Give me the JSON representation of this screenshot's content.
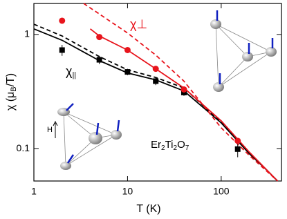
{
  "chart_data": {
    "type": "line",
    "x_label": "T (K)",
    "y_label_parts": [
      "χ (μ",
      "B",
      "/T)"
    ],
    "log_x": true,
    "log_y": true,
    "xlim": [
      1,
      440
    ],
    "ylim": [
      0.052,
      1.87
    ],
    "xticks": [
      1,
      10,
      100
    ],
    "yticks": [
      0.1,
      1
    ],
    "annotations": {
      "chi_perp": "χ⊥",
      "chi_par_parts": [
        "χ",
        "||"
      ],
      "compound_parts": [
        "Er",
        "2",
        "Ti",
        "2",
        "O",
        "7"
      ],
      "field": "H"
    },
    "series": [
      {
        "color": "#000000",
        "style": "dashed",
        "x": [
          1,
          2,
          5,
          10,
          20,
          40,
          100,
          200,
          400
        ],
        "values": [
          1.23,
          0.97,
          0.64,
          0.49,
          0.42,
          0.34,
          0.17,
          0.092,
          0.052
        ]
      },
      {
        "color": "#000000",
        "style": "solid",
        "x": [
          1,
          2,
          5,
          10,
          20,
          40,
          100,
          200,
          300,
          400
        ],
        "values": [
          1.12,
          0.89,
          0.59,
          0.46,
          0.4,
          0.32,
          0.168,
          0.09,
          0.066,
          0.052
        ]
      },
      {
        "color": "#e8141c",
        "style": "dashed",
        "x": [
          3.4,
          10,
          20,
          40,
          100,
          200,
          400
        ],
        "values": [
          1.87,
          1.03,
          0.66,
          0.39,
          0.152,
          0.087,
          0.052
        ]
      },
      {
        "color": "#e8141c",
        "style": "solid",
        "x": [
          4,
          5,
          10,
          20,
          40,
          100,
          200,
          400
        ],
        "values": [
          1.12,
          0.97,
          0.73,
          0.5,
          0.34,
          0.175,
          0.093,
          0.052
        ]
      },
      {
        "color": "#000000",
        "marker": "square",
        "x": [
          2,
          5,
          10,
          20,
          40,
          150
        ],
        "values": [
          0.73,
          0.6,
          0.47,
          0.39,
          0.31,
          0.099
        ],
        "errors": [
          0.08,
          0.05,
          0.03,
          0.03,
          0.02,
          0.015
        ]
      },
      {
        "color": "#e8141c",
        "marker": "circle",
        "x": [
          2,
          5,
          10,
          20,
          40,
          150
        ],
        "values": [
          1.32,
          0.95,
          0.73,
          0.5,
          0.33,
          0.117
        ]
      }
    ]
  }
}
